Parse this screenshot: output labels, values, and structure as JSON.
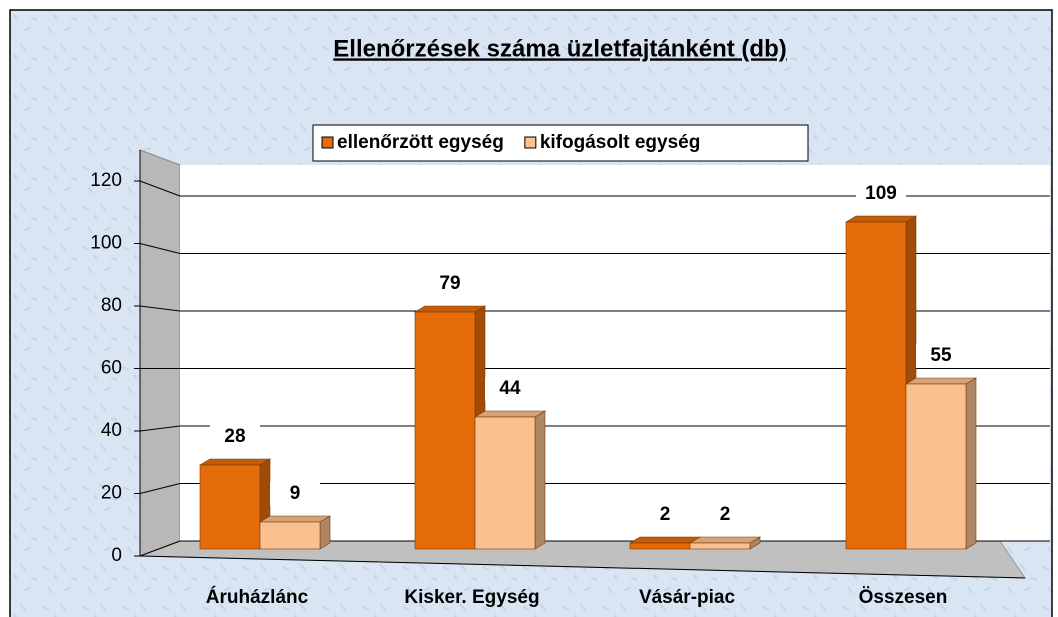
{
  "chart_data": {
    "type": "bar3d",
    "title": "Ellenőrzések száma üzletfajtánként (db)",
    "categories": [
      "Áruházlánc",
      "Kisker. Egység",
      "Vásár-piac",
      "Összesen"
    ],
    "series": [
      {
        "name": "ellenőrzött egység",
        "color": "#e46c0a",
        "values": [
          28,
          79,
          2,
          109
        ]
      },
      {
        "name": "kifogásolt egység",
        "color": "#fac090",
        "values": [
          9,
          44,
          2,
          55
        ]
      }
    ],
    "ylim": [
      0,
      120
    ],
    "yticks": [
      0,
      20,
      40,
      60,
      80,
      100,
      120
    ],
    "grid": true,
    "legend": "top"
  }
}
